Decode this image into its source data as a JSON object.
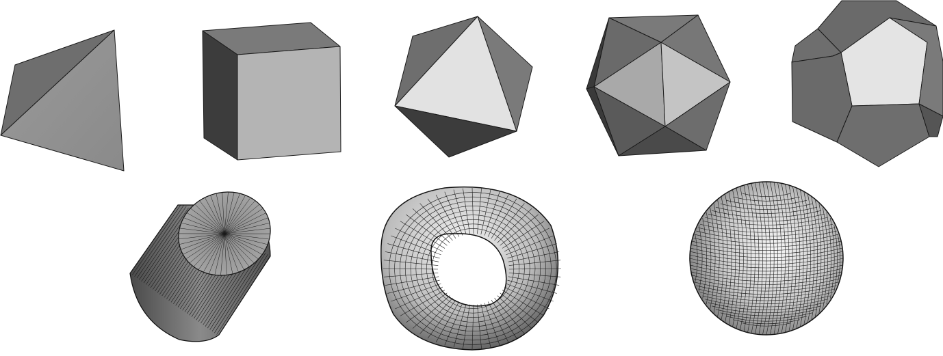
{
  "figure": {
    "shapes": [
      {
        "name": "tetrahedron",
        "faces": 4
      },
      {
        "name": "cube",
        "faces": 6
      },
      {
        "name": "octahedron",
        "faces": 8
      },
      {
        "name": "icosahedron",
        "faces": 20
      },
      {
        "name": "dodecahedron",
        "faces": 12
      },
      {
        "name": "cylinder",
        "type": "tessellated"
      },
      {
        "name": "torus",
        "type": "tessellated"
      },
      {
        "name": "sphere",
        "type": "tessellated"
      }
    ],
    "colors": {
      "background": "#ffffff",
      "edge": "#1a1a1a",
      "face_light": "#e4e4e4",
      "face_mid": "#a8a8a8",
      "face_dark": "#6e6e6e",
      "face_darkest": "#3c3c3c"
    }
  }
}
